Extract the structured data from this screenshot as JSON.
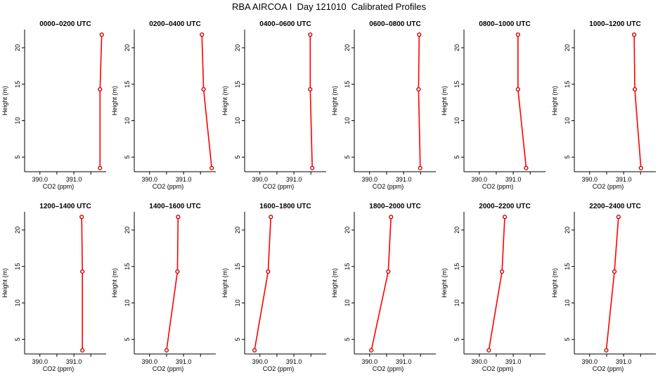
{
  "title": "RBA AIRCOA I  Day 121010  Calibrated Profiles",
  "colors": {
    "line": "#ff0000",
    "marker": "#cc0000",
    "axis": "#000000"
  },
  "chart_data": [
    {
      "type": "line",
      "title": "0000–0200 UTC",
      "xlabel": "CO2 (ppm)",
      "ylabel": "Height (m)",
      "xlim": [
        389.55,
        391.95
      ],
      "ylim": [
        3,
        22.5
      ],
      "xticks": [
        {
          "v": 390.0,
          "label": "390.0"
        },
        {
          "v": 390.5,
          "label": ""
        },
        {
          "v": 391.0,
          "label": "391.0"
        },
        {
          "v": 391.5,
          "label": ""
        }
      ],
      "yticks": [
        5,
        10,
        15,
        20
      ],
      "x": [
        391.77,
        391.77,
        391.82
      ],
      "y": [
        3.5,
        14.3,
        21.8
      ]
    },
    {
      "type": "line",
      "title": "0200–0400 UTC",
      "xlabel": "CO2 (ppm)",
      "ylabel": "Height (m)",
      "xlim": [
        389.55,
        391.95
      ],
      "ylim": [
        3,
        22.5
      ],
      "xticks": [
        {
          "v": 390.0,
          "label": "390.0"
        },
        {
          "v": 390.5,
          "label": ""
        },
        {
          "v": 391.0,
          "label": "391.0"
        },
        {
          "v": 391.5,
          "label": ""
        }
      ],
      "yticks": [
        5,
        10,
        15,
        20
      ],
      "x": [
        391.83,
        391.59,
        391.54
      ],
      "y": [
        3.5,
        14.3,
        21.8
      ]
    },
    {
      "type": "line",
      "title": "0400–0600 UTC",
      "xlabel": "CO2 (ppm)",
      "ylabel": "Height (m)",
      "xlim": [
        389.55,
        391.95
      ],
      "ylim": [
        3,
        22.5
      ],
      "xticks": [
        {
          "v": 390.0,
          "label": "390.0"
        },
        {
          "v": 390.5,
          "label": ""
        },
        {
          "v": 391.0,
          "label": "391.0"
        },
        {
          "v": 391.5,
          "label": ""
        }
      ],
      "yticks": [
        5,
        10,
        15,
        20
      ],
      "x": [
        391.54,
        391.48,
        391.48
      ],
      "y": [
        3.5,
        14.3,
        21.8
      ]
    },
    {
      "type": "line",
      "title": "0600–0800 UTC",
      "xlabel": "CO2 (ppm)",
      "ylabel": "Height (m)",
      "xlim": [
        389.55,
        391.95
      ],
      "ylim": [
        3,
        22.5
      ],
      "xticks": [
        {
          "v": 390.0,
          "label": "390.0"
        },
        {
          "v": 390.5,
          "label": ""
        },
        {
          "v": 391.0,
          "label": "391.0"
        },
        {
          "v": 391.5,
          "label": ""
        }
      ],
      "yticks": [
        5,
        10,
        15,
        20
      ],
      "x": [
        391.49,
        391.44,
        391.46
      ],
      "y": [
        3.5,
        14.3,
        21.8
      ]
    },
    {
      "type": "line",
      "title": "0800–1000 UTC",
      "xlabel": "CO2 (ppm)",
      "ylabel": "Height (m)",
      "xlim": [
        389.55,
        391.95
      ],
      "ylim": [
        3,
        22.5
      ],
      "xticks": [
        {
          "v": 390.0,
          "label": "390.0"
        },
        {
          "v": 390.5,
          "label": ""
        },
        {
          "v": 391.0,
          "label": "391.0"
        },
        {
          "v": 391.5,
          "label": ""
        }
      ],
      "yticks": [
        5,
        10,
        15,
        20
      ],
      "x": [
        391.38,
        391.14,
        391.14
      ],
      "y": [
        3.5,
        14.3,
        21.8
      ]
    },
    {
      "type": "line",
      "title": "1000–1200 UTC",
      "xlabel": "CO2 (ppm)",
      "ylabel": "Height (m)",
      "xlim": [
        389.55,
        391.95
      ],
      "ylim": [
        3,
        22.5
      ],
      "xticks": [
        {
          "v": 390.0,
          "label": "390.0"
        },
        {
          "v": 390.5,
          "label": ""
        },
        {
          "v": 391.0,
          "label": "391.0"
        },
        {
          "v": 391.5,
          "label": ""
        }
      ],
      "yticks": [
        5,
        10,
        15,
        20
      ],
      "x": [
        391.51,
        391.33,
        391.31
      ],
      "y": [
        3.5,
        14.3,
        21.8
      ]
    },
    {
      "type": "line",
      "title": "1200–1400 UTC",
      "xlabel": "CO2 (ppm)",
      "ylabel": "Height (m)",
      "xlim": [
        389.55,
        391.95
      ],
      "ylim": [
        3,
        22.5
      ],
      "xticks": [
        {
          "v": 390.0,
          "label": "390.0"
        },
        {
          "v": 390.5,
          "label": ""
        },
        {
          "v": 391.0,
          "label": "391.0"
        },
        {
          "v": 391.5,
          "label": ""
        }
      ],
      "yticks": [
        5,
        10,
        15,
        20
      ],
      "x": [
        391.25,
        391.25,
        391.23
      ],
      "y": [
        3.5,
        14.3,
        21.8
      ]
    },
    {
      "type": "line",
      "title": "1400–1600 UTC",
      "xlabel": "CO2 (ppm)",
      "ylabel": "Height (m)",
      "xlim": [
        389.55,
        391.95
      ],
      "ylim": [
        3,
        22.5
      ],
      "xticks": [
        {
          "v": 390.0,
          "label": "390.0"
        },
        {
          "v": 390.5,
          "label": ""
        },
        {
          "v": 391.0,
          "label": "391.0"
        },
        {
          "v": 391.5,
          "label": ""
        }
      ],
      "yticks": [
        5,
        10,
        15,
        20
      ],
      "x": [
        390.5,
        390.82,
        390.84
      ],
      "y": [
        3.5,
        14.3,
        21.8
      ]
    },
    {
      "type": "line",
      "title": "1600–1800 UTC",
      "xlabel": "CO2 (ppm)",
      "ylabel": "Height (m)",
      "xlim": [
        389.55,
        391.95
      ],
      "ylim": [
        3,
        22.5
      ],
      "xticks": [
        {
          "v": 390.0,
          "label": "390.0"
        },
        {
          "v": 390.5,
          "label": ""
        },
        {
          "v": 391.0,
          "label": "391.0"
        },
        {
          "v": 391.5,
          "label": ""
        }
      ],
      "yticks": [
        5,
        10,
        15,
        20
      ],
      "x": [
        389.84,
        390.24,
        390.32
      ],
      "y": [
        3.5,
        14.3,
        21.8
      ]
    },
    {
      "type": "line",
      "title": "1800–2000 UTC",
      "xlabel": "CO2 (ppm)",
      "ylabel": "Height (m)",
      "xlim": [
        389.55,
        391.95
      ],
      "ylim": [
        3,
        22.5
      ],
      "xticks": [
        {
          "v": 390.0,
          "label": "390.0"
        },
        {
          "v": 390.5,
          "label": ""
        },
        {
          "v": 391.0,
          "label": "391.0"
        },
        {
          "v": 391.5,
          "label": ""
        }
      ],
      "yticks": [
        5,
        10,
        15,
        20
      ],
      "x": [
        390.05,
        390.55,
        390.63
      ],
      "y": [
        3.5,
        14.3,
        21.8
      ]
    },
    {
      "type": "line",
      "title": "2000–2200 UTC",
      "xlabel": "CO2 (ppm)",
      "ylabel": "Height (m)",
      "xlim": [
        389.55,
        391.95
      ],
      "ylim": [
        3,
        22.5
      ],
      "xticks": [
        {
          "v": 390.0,
          "label": "390.0"
        },
        {
          "v": 390.5,
          "label": ""
        },
        {
          "v": 391.0,
          "label": "391.0"
        },
        {
          "v": 391.5,
          "label": ""
        }
      ],
      "yticks": [
        5,
        10,
        15,
        20
      ],
      "x": [
        390.28,
        390.67,
        390.75
      ],
      "y": [
        3.5,
        14.3,
        21.8
      ]
    },
    {
      "type": "line",
      "title": "2200–2400 UTC",
      "xlabel": "CO2 (ppm)",
      "ylabel": "Height (m)",
      "xlim": [
        389.55,
        391.95
      ],
      "ylim": [
        3,
        22.5
      ],
      "xticks": [
        {
          "v": 390.0,
          "label": "390.0"
        },
        {
          "v": 390.5,
          "label": ""
        },
        {
          "v": 391.0,
          "label": "391.0"
        },
        {
          "v": 391.5,
          "label": ""
        }
      ],
      "yticks": [
        5,
        10,
        15,
        20
      ],
      "x": [
        390.49,
        390.73,
        390.85
      ],
      "y": [
        3.5,
        14.3,
        21.8
      ]
    }
  ]
}
